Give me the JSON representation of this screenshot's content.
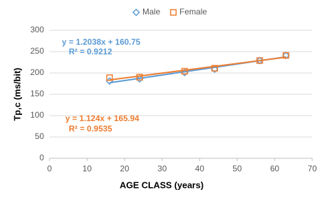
{
  "chart_data": {
    "type": "scatter",
    "xlabel": "AGE CLASS (years)",
    "ylabel": "Tp,c (ms/bit)",
    "xlim": [
      0,
      70
    ],
    "xticks": [
      0,
      10,
      20,
      30,
      40,
      50,
      60,
      70
    ],
    "ylim": [
      0,
      300
    ],
    "yticks": [
      0,
      50,
      100,
      150,
      200,
      250,
      300
    ],
    "grid": true,
    "legend": "top",
    "series": [
      {
        "name": "Male",
        "color": "#5b9bd5",
        "marker": "diamond",
        "x": [
          16,
          24,
          36,
          44,
          56,
          63
        ],
        "values": [
          181,
          186,
          201,
          209,
          229,
          241
        ]
      },
      {
        "name": "Female",
        "color": "#ed7d31",
        "marker": "square",
        "x": [
          16,
          24,
          36,
          44,
          56,
          63
        ],
        "values": [
          189,
          190,
          204,
          211,
          229,
          241
        ]
      }
    ],
    "annotations": [
      {
        "text": "y = 1.2038x + 160.75",
        "series": 0
      },
      {
        "text": "R² = 0.9212",
        "series": 0
      },
      {
        "text": "y = 1.124x + 165.94",
        "series": 1
      },
      {
        "text": "R² = 0.9535",
        "series": 1
      }
    ]
  }
}
